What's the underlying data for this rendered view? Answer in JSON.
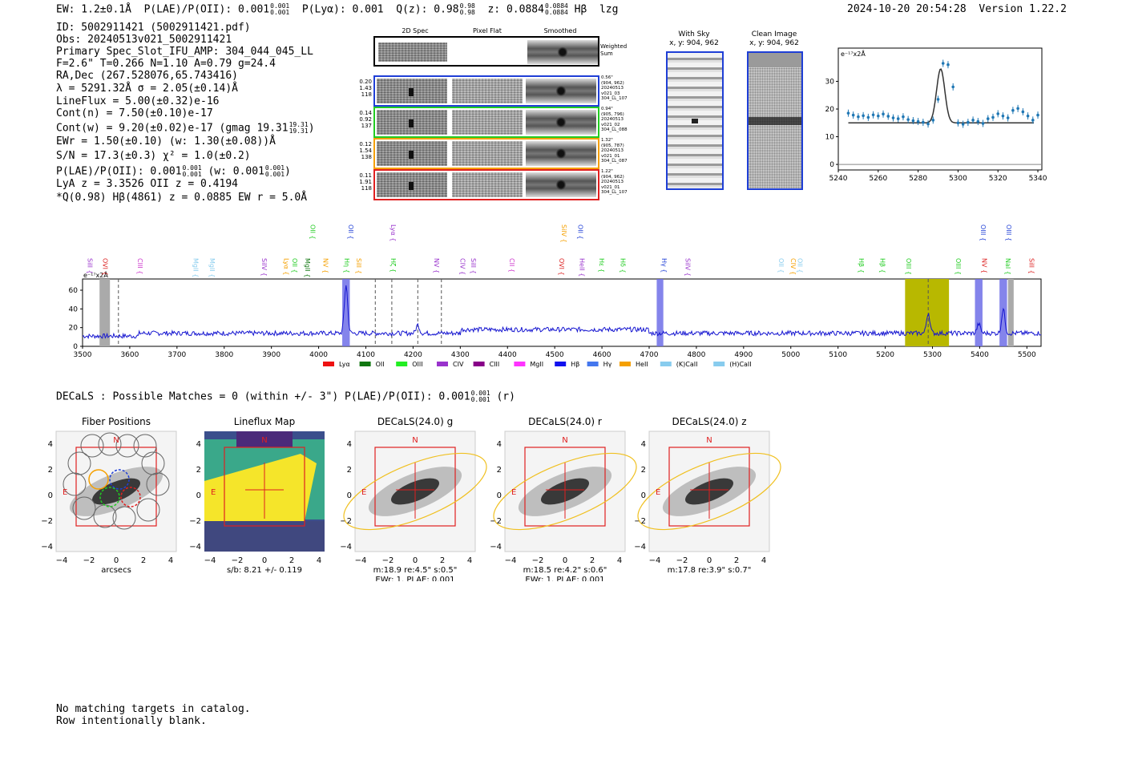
{
  "header": {
    "ew": "EW: 1.2±0.1Å",
    "plae_label": "P(LAE)/P(OII):",
    "plae_val": "0.001",
    "plae_hi": "0.001",
    "plae_lo": "0.001",
    "plya": "P(Lyα): 0.001",
    "q_label": "Q(z): 0.98",
    "q_hi": "0.98",
    "q_lo": "0.98",
    "z_label": "z: 0.0884",
    "z_hi": "0.0884",
    "z_lo": "0.0884",
    "line_name": "Hβ",
    "flag": "lzg",
    "datetime": "2024-10-20 20:54:28",
    "version": "Version 1.22.2"
  },
  "info": {
    "id": "ID: 5002911421 (5002911421.pdf)",
    "obs": "Obs: 20240513v021_5002911421",
    "primary": "Primary Spec_Slot_IFU_AMP: 304_044_045_LL",
    "fparams": "F=2.6\"  T=0.266  N=1.10  A=0.79  g=24.4",
    "radec": "RA,Dec (267.528076,65.743416)",
    "lambda": "λ = 5291.32Å  σ = 2.05(±0.14)Å",
    "lineflux": "LineFlux = 5.00(±0.32)e-16",
    "contn": "Cont(n) = 7.50(±0.10)e-17",
    "contw": "Cont(w) = 9.20(±0.02)e-17 (gmag 19.31",
    "contw_hi": "19.31",
    "contw_lo": "19.31",
    "ewr": "EWr = 1.50(±0.10) (w: 1.30(±0.08))Å",
    "sn": "S/N = 17.3(±0.3)  χ² = 1.0(±0.2)",
    "plae_line": "P(LAE)/P(OII): 0.001",
    "plae_line_hi": "0.001",
    "plae_line_lo": "0.001",
    "plae_line_w": "(w: 0.001",
    "plae_line_w_hi": "0.001",
    "plae_line_w_lo": "0.001",
    "lya_oii": "LyA z = 3.3526  OII z = 0.4194",
    "q_hbeta": "*Q(0.98) Hβ(4861) z = 0.0885  EW r = 5.0Å"
  },
  "cutouts": {
    "col_titles": [
      "2D Spec",
      "Pixel Flat",
      "Smoothed"
    ],
    "weighted_sum": "Weighted Sum",
    "rows": [
      {
        "left": [
          "0.20",
          "1.43",
          "118"
        ],
        "right": [
          "0.56\"",
          "(904, 962)",
          "20240513",
          "v021_03",
          "304_LL_107"
        ],
        "color": "#1f3fd6"
      },
      {
        "left": [
          "0.14",
          "0.92",
          "137"
        ],
        "right": [
          "0.94\"",
          "(905, 796)",
          "20240513",
          "v021_02",
          "304_LL_088"
        ],
        "color": "#22cc22"
      },
      {
        "left": [
          "0.12",
          "1.54",
          "138"
        ],
        "right": [
          "1.32\"",
          "(905, 787)",
          "20240513",
          "v021_01",
          "304_LL_087"
        ],
        "color": "#f5a000"
      },
      {
        "left": [
          "0.11",
          "1.91",
          "118"
        ],
        "right": [
          "1.22\"",
          "(904, 962)",
          "20240513",
          "v021_01",
          "304_LL_107"
        ],
        "color": "#e02020"
      }
    ]
  },
  "sky_panels": {
    "with_sky_title": "With Sky",
    "with_sky_coords": "x, y: 904, 962",
    "clean_title": "Clean Image",
    "clean_coords": "x, y: 904, 962"
  },
  "chart_data": [
    {
      "type": "scatter",
      "name": "line-fit-zoom",
      "title": "",
      "ylabel": "e⁻¹⁷x2Å",
      "xlim": [
        5240,
        5342
      ],
      "ylim": [
        -2,
        42
      ],
      "xticks": [
        5240,
        5260,
        5280,
        5300,
        5320,
        5340
      ],
      "yticks": [
        0,
        10,
        20,
        30
      ],
      "x": [
        5245,
        5247.5,
        5250,
        5252.5,
        5255,
        5257.5,
        5260,
        5262.5,
        5265,
        5267.5,
        5270,
        5272.5,
        5275,
        5277.5,
        5280,
        5282.5,
        5285,
        5287.5,
        5290,
        5292.5,
        5295,
        5297.5,
        5300,
        5302.5,
        5305,
        5307.5,
        5310,
        5312.5,
        5315,
        5317.5,
        5320,
        5322.5,
        5325,
        5327.5,
        5330,
        5332.5,
        5335,
        5337.5,
        5340
      ],
      "y": [
        18.5,
        17.8,
        17.2,
        17.6,
        17.0,
        17.9,
        17.5,
        18.2,
        17.4,
        16.8,
        16.5,
        17.2,
        16.2,
        15.8,
        15.5,
        15.2,
        14.6,
        16.0,
        23.5,
        36.5,
        36.0,
        28.0,
        15.0,
        14.5,
        15.2,
        16.0,
        15.5,
        14.8,
        16.5,
        17.0,
        18.3,
        17.5,
        16.8,
        19.5,
        20.2,
        19.0,
        17.5,
        16.0,
        17.8
      ],
      "fit": {
        "continuum": 15.0,
        "center": 5291.3,
        "sigma": 2.05,
        "peak": 34.5
      }
    },
    {
      "type": "line",
      "name": "full-spectrum",
      "ylabel": "e⁻¹⁷x2Å",
      "xlim": [
        3500,
        5530
      ],
      "ylim": [
        0,
        72
      ],
      "xticks": [
        3500,
        3600,
        3700,
        3800,
        3900,
        4000,
        4100,
        4200,
        4300,
        4400,
        4500,
        4600,
        4700,
        4800,
        4900,
        5000,
        5100,
        5200,
        5300,
        5400,
        5500
      ],
      "yticks": [
        0,
        20,
        40,
        60
      ],
      "baseline": 14,
      "peaks": [
        {
          "x": 4058,
          "h": 52
        },
        {
          "x": 4210,
          "h": 9
        },
        {
          "x": 5291,
          "h": 22
        },
        {
          "x": 5398,
          "h": 10
        },
        {
          "x": 5450,
          "h": 26
        }
      ],
      "emission_lines": [
        {
          "label": "SiII",
          "x": 3506,
          "color": "#9933cc",
          "row": 2
        },
        {
          "label": "OVI",
          "x": 3538,
          "color": "#dd2222",
          "row": 2
        },
        {
          "label": "CIII",
          "x": 3612,
          "color": "#cc33cc",
          "row": 2
        },
        {
          "label": "MgII",
          "x": 3730,
          "color": "#88ccee",
          "row": 2
        },
        {
          "label": "MgII",
          "x": 3765,
          "color": "#88ccee",
          "row": 2
        },
        {
          "label": "SiIV",
          "x": 3875,
          "color": "#9933cc",
          "row": 2
        },
        {
          "label": "Lyα",
          "x": 3922,
          "color": "#f5a000",
          "row": 2
        },
        {
          "label": "OII",
          "x": 3940,
          "color": "#22cc22",
          "row": 2
        },
        {
          "label": "MgII",
          "x": 3967,
          "color": "#117711",
          "row": 2
        },
        {
          "label": "NV",
          "x": 4005,
          "color": "#f5a000",
          "row": 2
        },
        {
          "label": "OII",
          "x": 3978,
          "color": "#22cc22",
          "row": 0
        },
        {
          "label": "OII",
          "x": 4058,
          "color": "#1f3fd6",
          "row": 0
        },
        {
          "label": "Hη",
          "x": 4050,
          "color": "#22cc22",
          "row": 2
        },
        {
          "label": "SiII",
          "x": 4075,
          "color": "#f5a000",
          "row": 2
        },
        {
          "label": "Lyα",
          "x": 4148,
          "color": "#9933cc",
          "row": 0
        },
        {
          "label": "Hζ",
          "x": 4148,
          "color": "#22cc22",
          "row": 2
        },
        {
          "label": "NV",
          "x": 4240,
          "color": "#9933cc",
          "row": 2
        },
        {
          "label": "CIV",
          "x": 4295,
          "color": "#9933cc",
          "row": 2
        },
        {
          "label": "SiII",
          "x": 4318,
          "color": "#9933cc",
          "row": 2
        },
        {
          "label": "CII",
          "x": 4400,
          "color": "#cc33cc",
          "row": 2
        },
        {
          "label": "SiIV",
          "x": 4510,
          "color": "#f5a000",
          "row": 0
        },
        {
          "label": "OII",
          "x": 4545,
          "color": "#1f3fd6",
          "row": 0
        },
        {
          "label": "OVI",
          "x": 4505,
          "color": "#dd2222",
          "row": 2
        },
        {
          "label": "HeII",
          "x": 4548,
          "color": "#9933cc",
          "row": 2
        },
        {
          "label": "Hε",
          "x": 4590,
          "color": "#22cc22",
          "row": 2
        },
        {
          "label": "Hδ",
          "x": 4635,
          "color": "#22cc22",
          "row": 2
        },
        {
          "label": "Hγ",
          "x": 4722,
          "color": "#1f3fd6",
          "row": 2
        },
        {
          "label": "SiIV",
          "x": 4772,
          "color": "#9933cc",
          "row": 2
        },
        {
          "label": "OII",
          "x": 4970,
          "color": "#88ccee",
          "row": 2
        },
        {
          "label": "CIV",
          "x": 4995,
          "color": "#f5a000",
          "row": 2
        },
        {
          "label": "OII",
          "x": 5010,
          "color": "#88ccee",
          "row": 2
        },
        {
          "label": "Hβ",
          "x": 5140,
          "color": "#22cc22",
          "row": 2
        },
        {
          "label": "Hβ",
          "x": 5185,
          "color": "#22cc22",
          "row": 2
        },
        {
          "label": "OIII",
          "x": 5240,
          "color": "#22cc22",
          "row": 2
        },
        {
          "label": "OIII",
          "x": 5345,
          "color": "#22cc22",
          "row": 2
        },
        {
          "label": "NV",
          "x": 5400,
          "color": "#dd2222",
          "row": 2
        },
        {
          "label": "NaI",
          "x": 5450,
          "color": "#22cc22",
          "row": 2
        },
        {
          "label": "SiII",
          "x": 5500,
          "color": "#dd2222",
          "row": 2
        },
        {
          "label": "OIII",
          "x": 5398,
          "color": "#1f3fd6",
          "row": 0
        },
        {
          "label": "OIII",
          "x": 5452,
          "color": "#1f3fd6",
          "row": 0
        }
      ],
      "legend": [
        {
          "label": "Lyα",
          "color": "#ee1111"
        },
        {
          "label": "OII",
          "color": "#117711"
        },
        {
          "label": "OIII",
          "color": "#22ee22"
        },
        {
          "label": "CIV",
          "color": "#9933cc"
        },
        {
          "label": "CIII",
          "color": "#880088"
        },
        {
          "label": "MgII",
          "color": "#ff33ff"
        },
        {
          "label": "Hβ",
          "color": "#1111ee"
        },
        {
          "label": "Hγ",
          "color": "#4477ee"
        },
        {
          "label": "HeII",
          "color": "#f5a000"
        },
        {
          "label": "(K)CaII",
          "color": "#88ccee"
        },
        {
          "label": "(H)CaII",
          "color": "#88ccee"
        }
      ]
    }
  ],
  "decals": {
    "summary": "DECaLS : Possible Matches = 0 (within +/- 3\")  P(LAE)/P(OII): 0.001",
    "summary_hi": "0.001",
    "summary_lo": "0.001",
    "summary_tail": "(r)",
    "panels": [
      {
        "title": "Fiber Positions",
        "caption1": "arcsecs",
        "caption2": ""
      },
      {
        "title": "Lineflux Map",
        "caption1": "s/b: 8.21 +/- 0.119",
        "caption2": ""
      },
      {
        "title": "DECaLS(24.0) g",
        "caption1": "m:18.9  re:4.5\"  s:0.5\"",
        "caption2": "EWr: 1. PLAE: 0.001"
      },
      {
        "title": "DECaLS(24.0) r",
        "caption1": "m:18.5  re:4.2\"  s:0.6\"",
        "caption2": "EWr: 1. PLAE: 0.001"
      },
      {
        "title": "DECaLS(24.0) z",
        "caption1": "m:17.8  re:3.9\"  s:0.7\"",
        "caption2": ""
      }
    ],
    "axis_ticks": [
      "−4",
      "−2",
      "0",
      "2",
      "4"
    ],
    "north": "N",
    "east": "E"
  },
  "footer": {
    "line1": "No matching targets in catalog.",
    "line2": "Row intentionally blank."
  }
}
